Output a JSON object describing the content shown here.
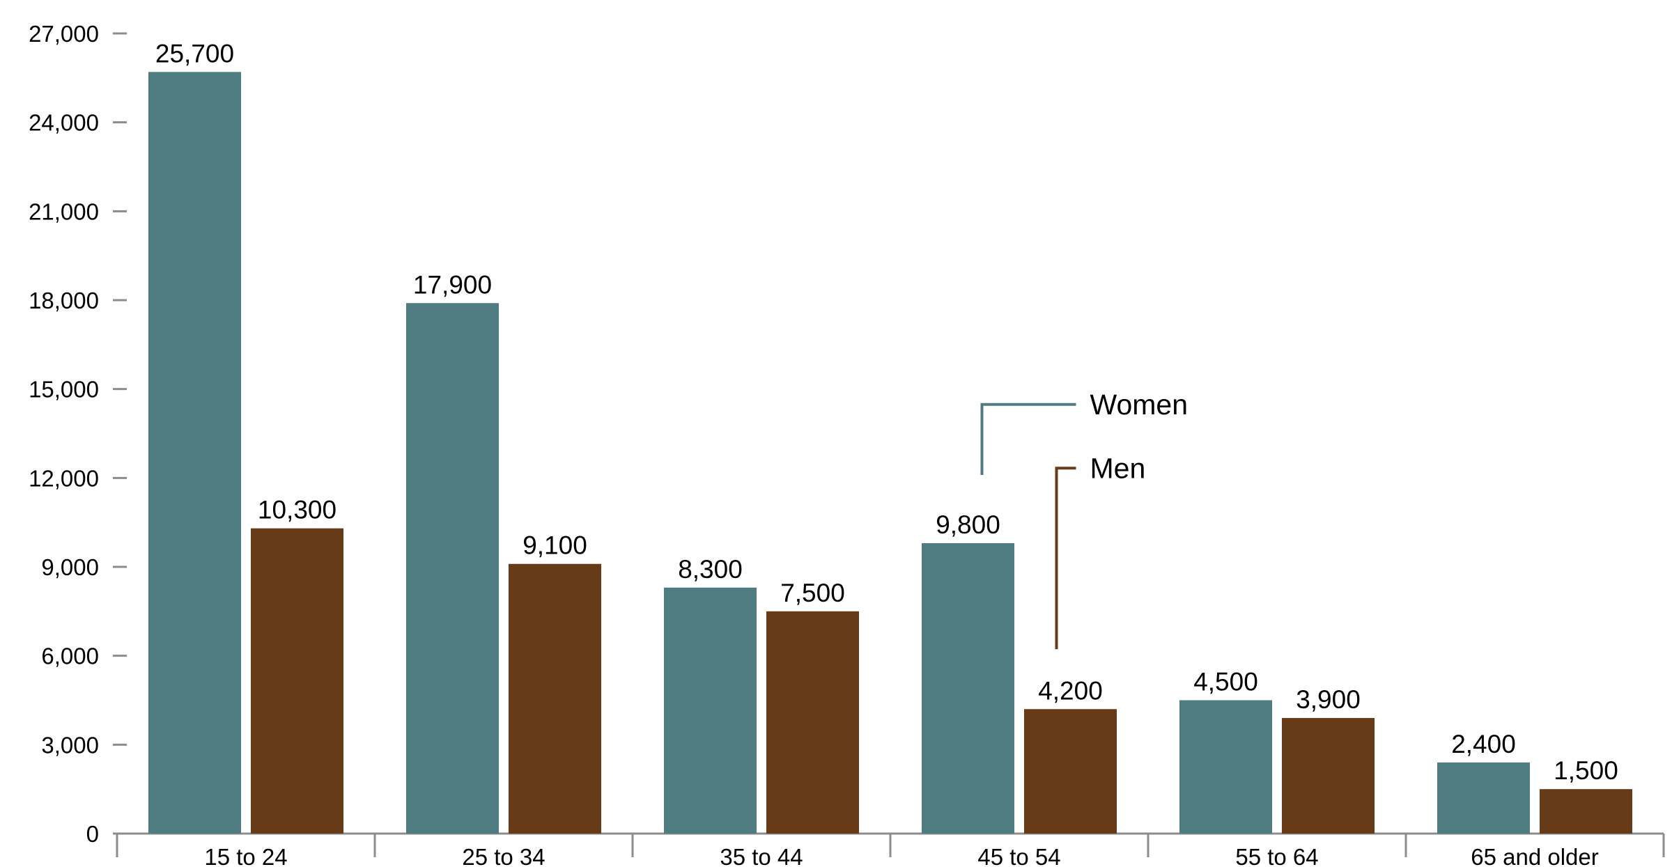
{
  "chart_data": {
    "type": "bar",
    "categories": [
      "15 to 24",
      "25 to 34",
      "35 to 44",
      "45 to 54",
      "55 to 64",
      "65 and older"
    ],
    "series": [
      {
        "name": "Women",
        "values": [
          25700,
          17900,
          8300,
          9800,
          4500,
          2400
        ],
        "color": "#4e7c80",
        "labels": [
          "25,700",
          "17,900",
          "8,300",
          "9,800",
          "4,500",
          "2,400"
        ]
      },
      {
        "name": "Men",
        "values": [
          10300,
          9100,
          7500,
          4200,
          3900,
          1500
        ],
        "color": "#673b18",
        "labels": [
          "10,300",
          "9,100",
          "7,500",
          "4,200",
          "3,900",
          "1,500"
        ]
      }
    ],
    "y_ticks": [
      0,
      3000,
      6000,
      9000,
      12000,
      15000,
      18000,
      21000,
      24000,
      27000
    ],
    "y_tick_labels": [
      "0",
      "3,000",
      "6,000",
      "9,000",
      "12,000",
      "15,000",
      "18,000",
      "21,000",
      "24,000",
      "27,000"
    ],
    "ylim": [
      0,
      27000
    ],
    "title": "",
    "xlabel": "",
    "ylabel": "",
    "grid": false,
    "legend": "callout labels pointing to the 45 to 54 bars"
  }
}
